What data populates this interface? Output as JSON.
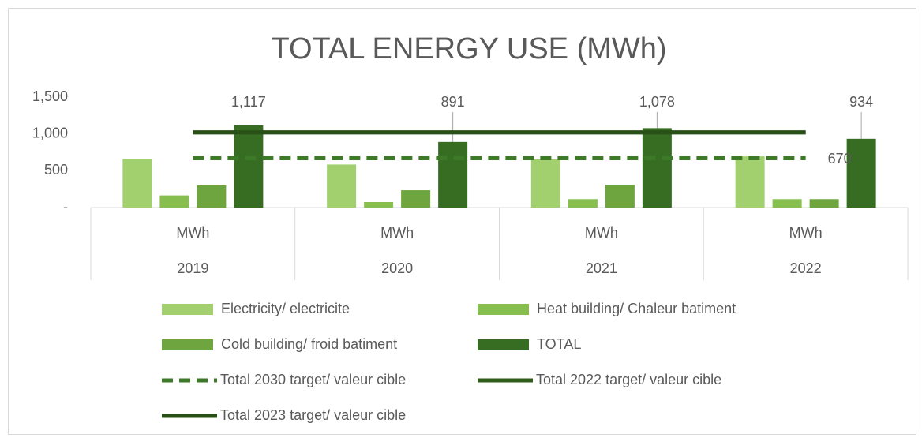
{
  "chart_data": {
    "type": "bar",
    "title": "TOTAL ENERGY USE (MWh)",
    "categories": [
      "2019",
      "2020",
      "2021",
      "2022"
    ],
    "subcategories": [
      "MWh",
      "MWh",
      "MWh",
      "MWh"
    ],
    "series": [
      {
        "name": "Electricity/ electricite",
        "type": "bar",
        "color": "#a2d06f",
        "values": [
          660,
          585,
          655,
          695
        ]
      },
      {
        "name": "Heat building/ Chaleur batiment",
        "type": "bar",
        "color": "#86bf4f",
        "values": [
          165,
          75,
          115,
          115
        ]
      },
      {
        "name": "Cold building/ froid batiment",
        "type": "bar",
        "color": "#6ea53f",
        "values": [
          300,
          235,
          310,
          115
        ]
      },
      {
        "name": "TOTAL",
        "type": "bar",
        "color": "#376d22",
        "values": [
          1117,
          891,
          1078,
          934
        ],
        "value_labels": [
          "1,117",
          "891",
          "1,078",
          "934"
        ]
      },
      {
        "name": "Total 2030 target/ valeur cible",
        "type": "line",
        "dashed": true,
        "color": "#3d7a27",
        "values": [
          670,
          670,
          670,
          670
        ],
        "value_labels": [
          null,
          null,
          null,
          "670"
        ]
      },
      {
        "name": "Total 2022 target/ valeur cible",
        "type": "line",
        "color": "#2f5e1b",
        "values": [
          1020,
          1020,
          1020,
          1020
        ]
      },
      {
        "name": "Total 2023 target/ valeur cible",
        "type": "line",
        "color": "#284f16",
        "values": [
          1020,
          1020,
          1020,
          1020
        ]
      }
    ],
    "ylim": [
      0,
      1500
    ],
    "yticks": [
      {
        "value": 0,
        "label": "-"
      },
      500,
      {
        "value": 1000,
        "label": "1,000"
      },
      {
        "value": 1500,
        "label": "1,500"
      }
    ],
    "legend": "bottom"
  }
}
